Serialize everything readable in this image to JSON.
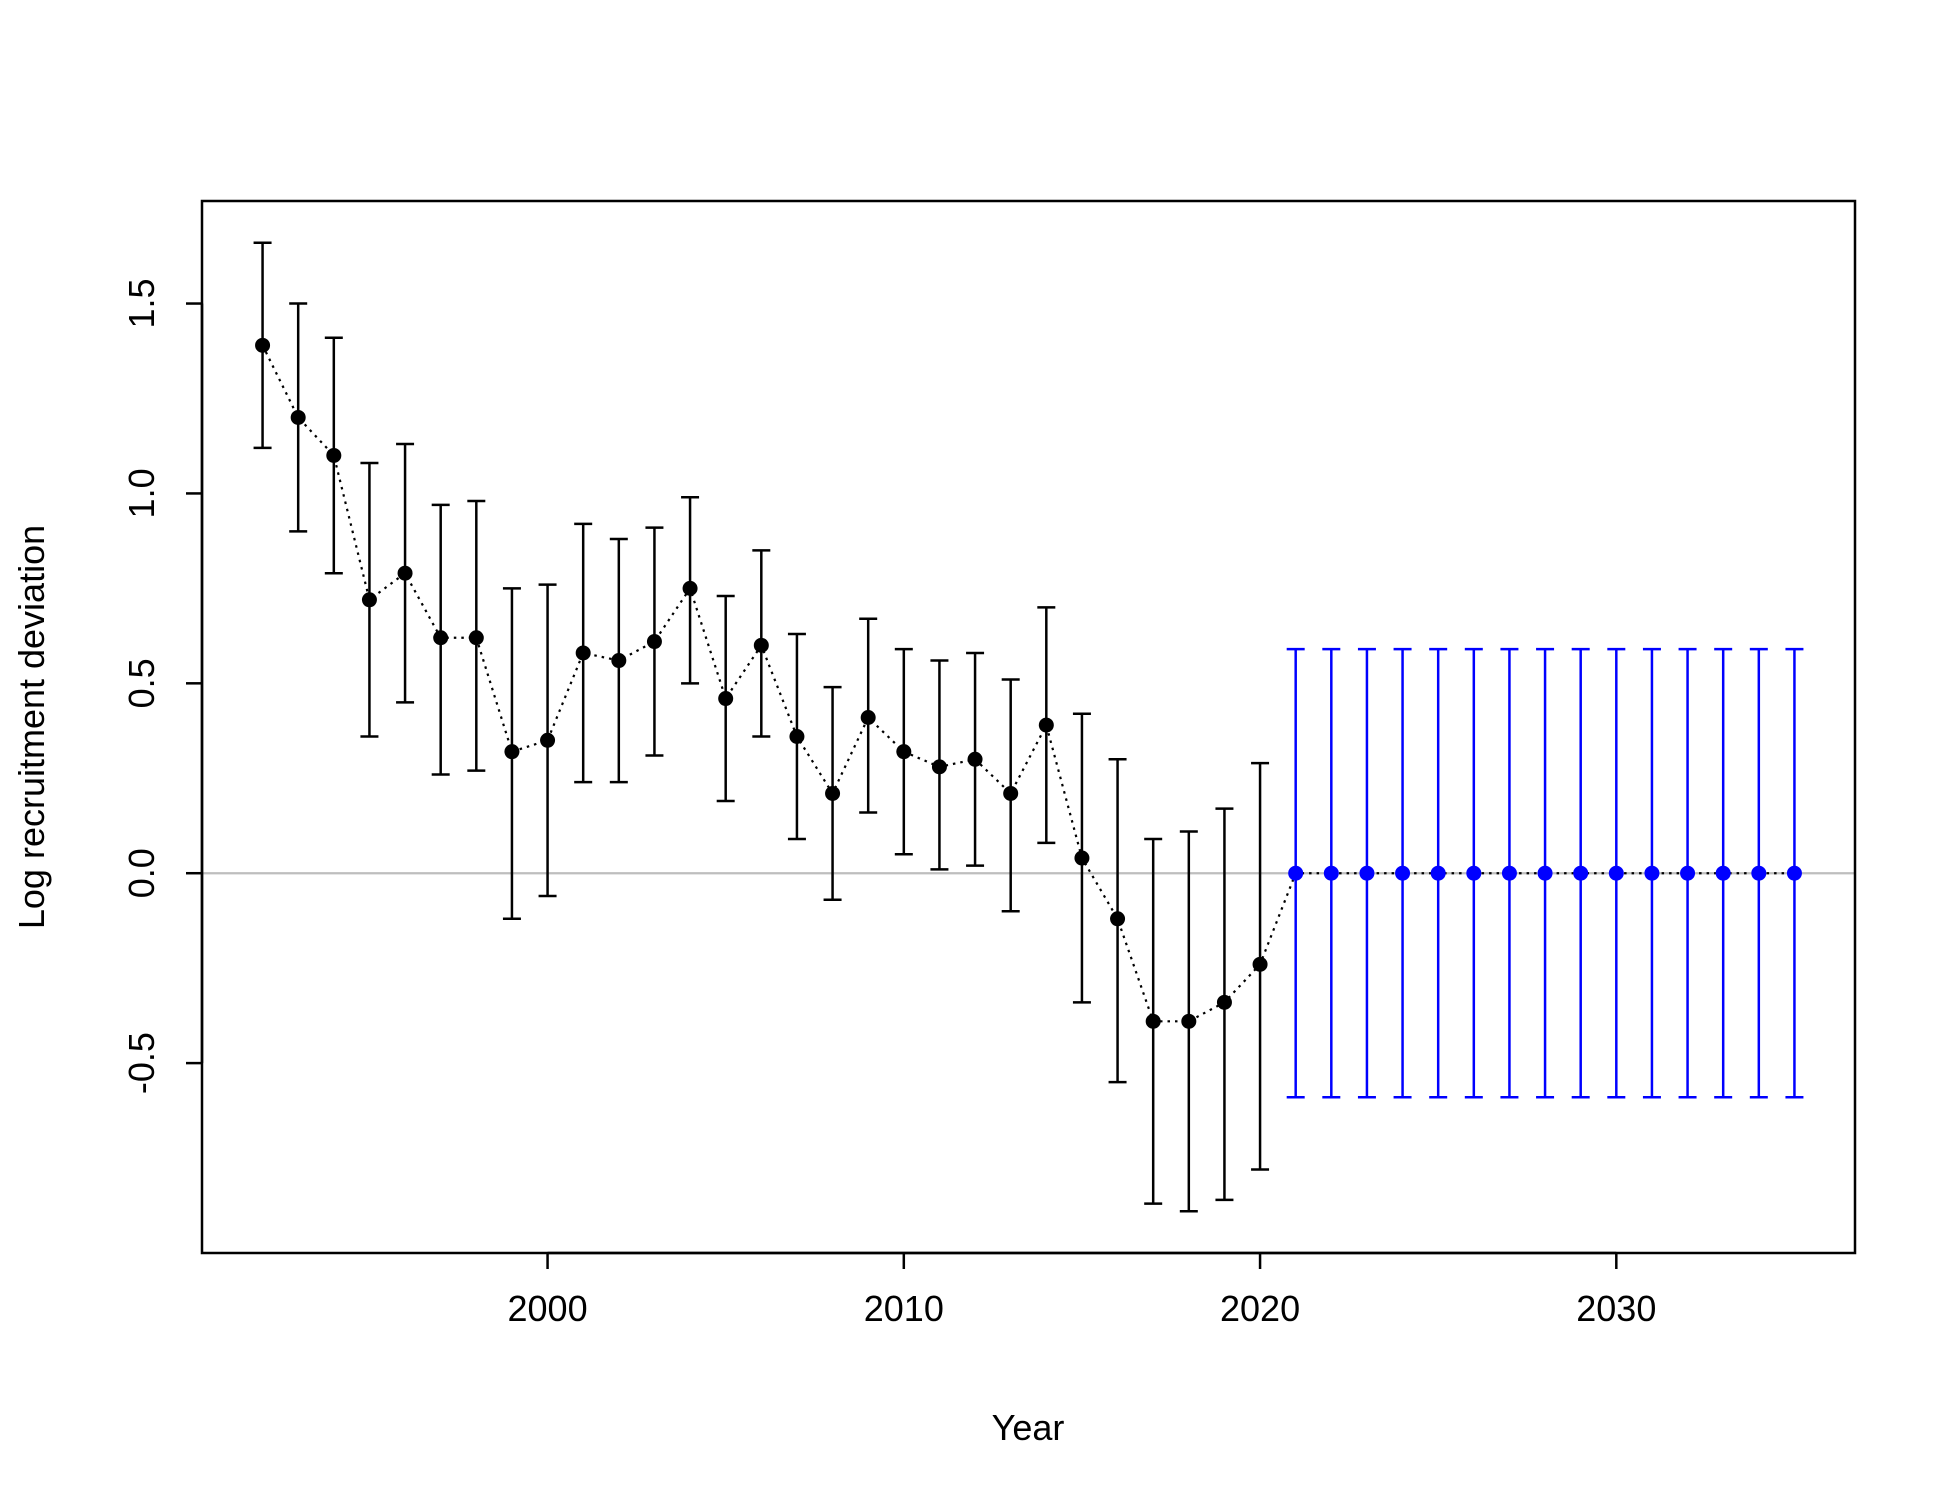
{
  "chart_data": {
    "type": "scatter",
    "title": "",
    "xlabel": "Year",
    "ylabel": "Log recruitment deviation",
    "xlim": [
      1990.3,
      2036.7
    ],
    "ylim": [
      -1.0,
      1.77
    ],
    "x_ticks": [
      2000,
      2010,
      2020,
      2030
    ],
    "x_tick_labels": [
      "2000",
      "2010",
      "2020",
      "2030"
    ],
    "y_ticks": [
      -0.5,
      0.0,
      0.5,
      1.0,
      1.5
    ],
    "y_tick_labels": [
      "-0.5",
      "0.0",
      "0.5",
      "1.0",
      "1.5"
    ],
    "reference_line": {
      "y": 0.0,
      "color": "#bebebe"
    },
    "connector": {
      "style": "dotted",
      "color": "#000000"
    },
    "grid": false,
    "legend": "none",
    "series": [
      {
        "color": "#000000",
        "x": [
          1992,
          1993,
          1994,
          1995,
          1996,
          1997,
          1998,
          1999,
          2000,
          2001,
          2002,
          2003,
          2004,
          2005,
          2006,
          2007,
          2008,
          2009,
          2010,
          2011,
          2012,
          2013,
          2014,
          2015,
          2016,
          2017,
          2018,
          2019,
          2020
        ],
        "y": [
          1.39,
          1.2,
          1.1,
          0.72,
          0.79,
          0.62,
          0.62,
          0.32,
          0.35,
          0.58,
          0.56,
          0.61,
          0.75,
          0.46,
          0.6,
          0.36,
          0.21,
          0.41,
          0.32,
          0.28,
          0.3,
          0.21,
          0.39,
          0.04,
          -0.12,
          -0.39,
          -0.39,
          -0.34,
          -0.24
        ],
        "lower": [
          1.12,
          0.9,
          0.79,
          0.36,
          0.45,
          0.26,
          0.27,
          -0.12,
          -0.06,
          0.24,
          0.24,
          0.31,
          0.5,
          0.19,
          0.36,
          0.09,
          -0.07,
          0.16,
          0.05,
          0.01,
          0.02,
          -0.1,
          0.08,
          -0.34,
          -0.55,
          -0.87,
          -0.89,
          -0.86,
          -0.78
        ],
        "upper": [
          1.66,
          1.5,
          1.41,
          1.08,
          1.13,
          0.97,
          0.98,
          0.75,
          0.76,
          0.92,
          0.88,
          0.91,
          0.99,
          0.73,
          0.85,
          0.63,
          0.49,
          0.67,
          0.59,
          0.56,
          0.58,
          0.51,
          0.7,
          0.42,
          0.3,
          0.09,
          0.11,
          0.17,
          0.29
        ]
      },
      {
        "color": "#0000ff",
        "x": [
          2021,
          2022,
          2023,
          2024,
          2025,
          2026,
          2027,
          2028,
          2029,
          2030,
          2031,
          2032,
          2033,
          2034,
          2035
        ],
        "y": [
          0,
          0,
          0,
          0,
          0,
          0,
          0,
          0,
          0,
          0,
          0,
          0,
          0,
          0,
          0
        ],
        "lower": [
          -0.59,
          -0.59,
          -0.59,
          -0.59,
          -0.59,
          -0.59,
          -0.59,
          -0.59,
          -0.59,
          -0.59,
          -0.59,
          -0.59,
          -0.59,
          -0.59,
          -0.59
        ],
        "upper": [
          0.59,
          0.59,
          0.59,
          0.59,
          0.59,
          0.59,
          0.59,
          0.59,
          0.59,
          0.59,
          0.59,
          0.59,
          0.59,
          0.59,
          0.59
        ]
      }
    ]
  }
}
